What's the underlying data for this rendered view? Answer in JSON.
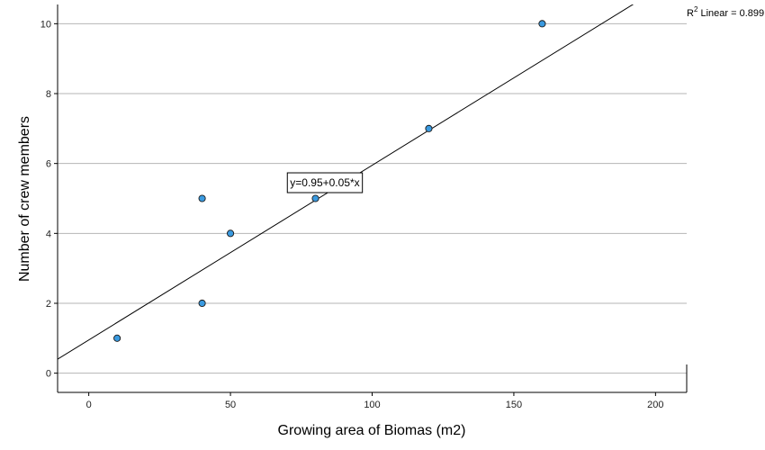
{
  "chart_data": {
    "type": "scatter",
    "title": "",
    "xlabel": "Growing area of Biomas (m2)",
    "ylabel": "Number of crew members",
    "xlim": [
      -11,
      211
    ],
    "ylim": [
      -0.55,
      10.55
    ],
    "x_ticks": [
      0,
      50,
      100,
      150,
      200
    ],
    "y_ticks": [
      0,
      2,
      4,
      6,
      8,
      10
    ],
    "grid": {
      "horizontal": true,
      "vertical": false
    },
    "points": [
      {
        "x": 10,
        "y": 1
      },
      {
        "x": 40,
        "y": 5
      },
      {
        "x": 40,
        "y": 2
      },
      {
        "x": 50,
        "y": 4
      },
      {
        "x": 80,
        "y": 5
      },
      {
        "x": 120,
        "y": 7
      },
      {
        "x": 160,
        "y": 10
      }
    ],
    "fit_line": {
      "type": "linear",
      "intercept": 0.95,
      "slope": 0.05,
      "equation_label": "y=0.95+0.05*x",
      "equation_at": {
        "x": 83,
        "y": 5.45
      },
      "r2_prefix": "R",
      "r2_superscript": "2",
      "r2_text": " Linear = 0.899"
    },
    "colors": {
      "marker_fill": "#3a9ae0",
      "marker_stroke": "#1a1a1a",
      "grid": "#b4b4b4",
      "axis": "#000000",
      "fit_line": "#000000"
    }
  }
}
